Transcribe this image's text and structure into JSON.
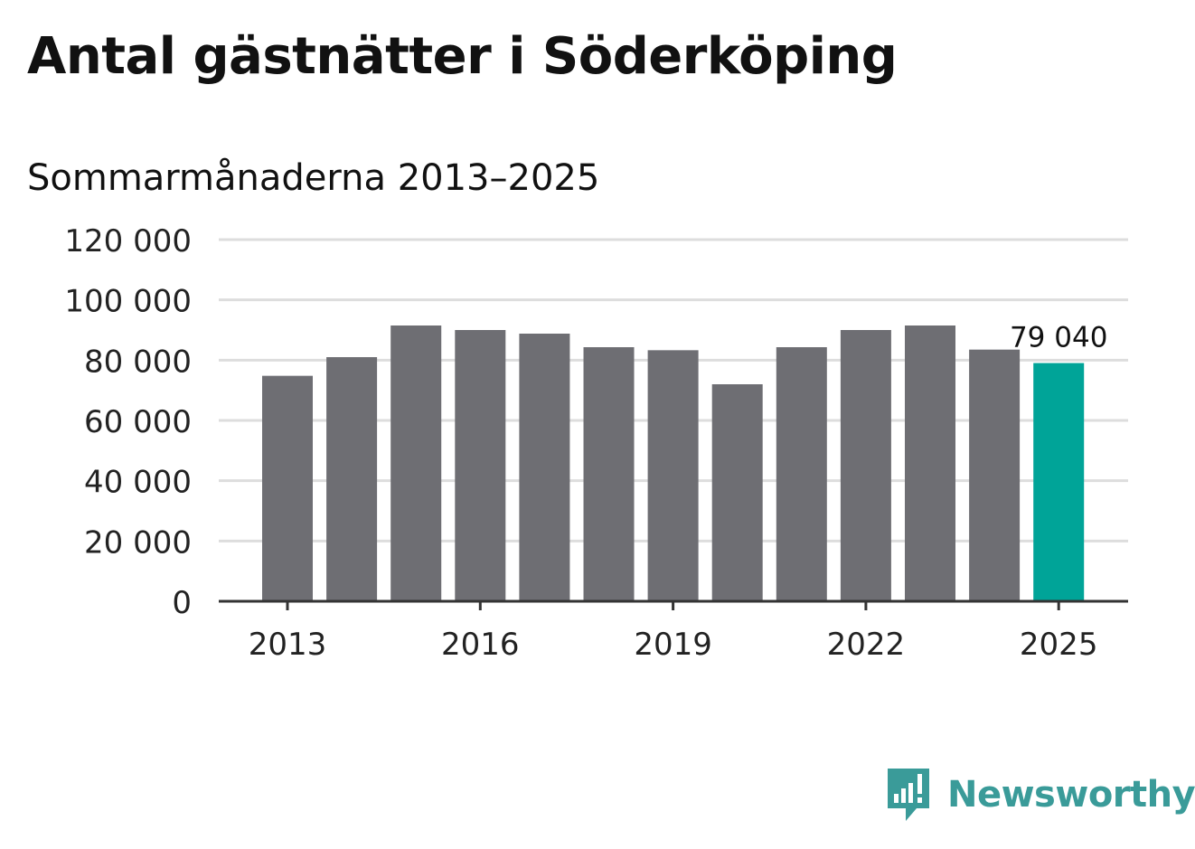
{
  "title": "Antal gästnätter i Söderköping",
  "subtitle": "Sommarmånaderna 2013–2025",
  "brand": {
    "name": "Newsworthy",
    "color": "#3a9b99",
    "icon": "newsworthy-logo-icon"
  },
  "colors": {
    "bar": "#6e6e73",
    "highlight": "#00a498",
    "grid": "#dddddd",
    "axis": "#333333"
  },
  "chart_data": {
    "type": "bar",
    "categories": [
      "2013",
      "2014",
      "2015",
      "2016",
      "2017",
      "2018",
      "2019",
      "2020",
      "2021",
      "2022",
      "2023",
      "2024",
      "2025"
    ],
    "values": [
      74800,
      81000,
      91500,
      90000,
      88800,
      84300,
      83300,
      72000,
      84300,
      90000,
      91500,
      83500,
      79040
    ],
    "highlight_index": 12,
    "data_label": {
      "index": 12,
      "text": "79 040"
    },
    "ylim": [
      0,
      120000
    ],
    "yticks": [
      0,
      20000,
      40000,
      60000,
      80000,
      100000,
      120000
    ],
    "ytick_labels": [
      "0",
      "20 000",
      "40 000",
      "60 000",
      "80 000",
      "100 000",
      "120 000"
    ],
    "xtick_labels": [
      "2013",
      "2016",
      "2019",
      "2022",
      "2025"
    ],
    "grid": true,
    "legend": "none"
  }
}
